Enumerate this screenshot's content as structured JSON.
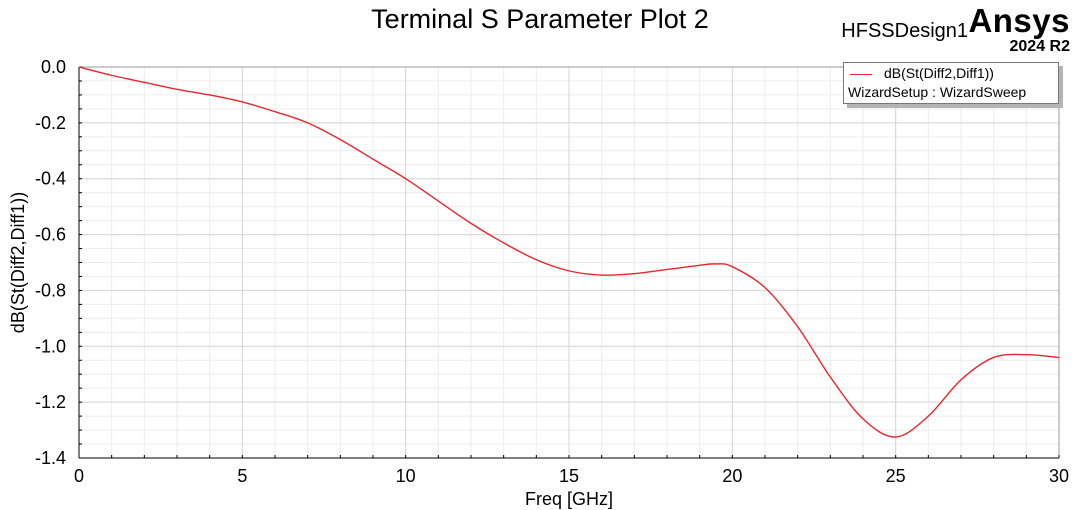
{
  "header": {
    "title": "Terminal S Parameter Plot 2",
    "design_name": "HFSSDesign1",
    "brand": "Ansys",
    "version": "2024 R2"
  },
  "legend": {
    "trace_name": "dB(St(Diff2,Diff1))",
    "setup": "WizardSetup : WizardSweep"
  },
  "colors": {
    "trace": "#e8262b",
    "grid": "#e3e3e3",
    "axis": "#000000"
  },
  "chart_data": {
    "type": "line",
    "title": "Terminal S Parameter Plot 2",
    "xlabel": "Freq [GHz]",
    "ylabel": "dB(St(Diff2,Diff1))",
    "xlim": [
      0,
      30
    ],
    "ylim": [
      -1.4,
      0.0
    ],
    "x_ticks": [
      0,
      5,
      10,
      15,
      20,
      25,
      30
    ],
    "x_tick_labels": [
      "0",
      "5",
      "10",
      "15",
      "20",
      "25",
      "30"
    ],
    "y_ticks": [
      0.0,
      -0.2,
      -0.4,
      -0.6,
      -0.8,
      -1.0,
      -1.2,
      -1.4
    ],
    "y_tick_labels": [
      "0.0",
      "-0.2",
      "-0.4",
      "-0.6",
      "-0.8",
      "-1.0",
      "-1.2",
      "-1.4"
    ],
    "grid": true,
    "legend_position": "top-right",
    "series": [
      {
        "name": "dB(St(Diff2,Diff1))",
        "x": [
          0,
          1,
          2,
          3,
          4,
          5,
          6,
          7,
          8,
          9,
          10,
          11,
          12,
          13,
          14,
          15,
          16,
          17,
          18,
          19,
          19.5,
          20,
          21,
          22,
          23,
          24,
          25,
          26,
          27,
          28,
          29,
          30
        ],
        "y": [
          0.0,
          -0.03,
          -0.055,
          -0.08,
          -0.1,
          -0.125,
          -0.16,
          -0.2,
          -0.26,
          -0.33,
          -0.4,
          -0.48,
          -0.56,
          -0.63,
          -0.69,
          -0.73,
          -0.745,
          -0.74,
          -0.725,
          -0.71,
          -0.705,
          -0.715,
          -0.79,
          -0.93,
          -1.11,
          -1.26,
          -1.325,
          -1.25,
          -1.12,
          -1.04,
          -1.03,
          -1.04
        ]
      }
    ]
  }
}
